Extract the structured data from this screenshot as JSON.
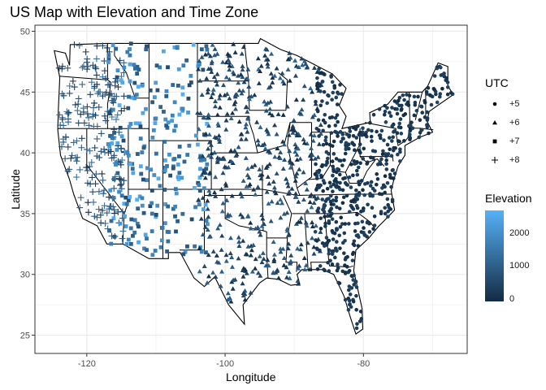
{
  "chart_data": {
    "type": "scatter",
    "title": "US Map with Elevation and Time Zone",
    "xlabel": "Longitude",
    "ylabel": "Latitude",
    "xlim": [
      -127.5,
      -65
    ],
    "ylim": [
      23.5,
      50.5
    ],
    "x_ticks": [
      -120,
      -100,
      -80
    ],
    "y_ticks": [
      25,
      30,
      35,
      40,
      45,
      50
    ],
    "x_tick_labels": [
      "-120",
      "-100",
      "-80"
    ],
    "y_tick_labels": [
      "25",
      "30",
      "35",
      "40",
      "45",
      "50"
    ],
    "grid": true,
    "legend_placement": "right",
    "shape_legend": {
      "title": "UTC",
      "entries": [
        {
          "label": "+5",
          "shape": "circle"
        },
        {
          "label": "+6",
          "shape": "triangle"
        },
        {
          "label": "+7",
          "shape": "square"
        },
        {
          "label": "+8",
          "shape": "plus"
        }
      ]
    },
    "color_legend": {
      "title": "Elevation",
      "labels": [
        "2000",
        "1000",
        "0"
      ],
      "values": [
        2000,
        1000,
        0
      ],
      "range": [
        0,
        2700
      ],
      "low_color": "#132B43",
      "high_color": "#56B1F7"
    },
    "series": [
      {
        "name": "+8",
        "shape": "plus",
        "lon_range": [
          -124.5,
          -114.5
        ],
        "lat_range": [
          32.7,
          49.2
        ],
        "elev_range": [
          0,
          1500
        ]
      },
      {
        "name": "+7",
        "shape": "square",
        "lon_range": [
          -117,
          -102.5
        ],
        "lat_range": [
          31.5,
          49
        ],
        "elev_range": [
          600,
          2700
        ]
      },
      {
        "name": "+6",
        "shape": "triangle",
        "lon_range": [
          -104,
          -86
        ],
        "lat_range": [
          26,
          49
        ],
        "elev_range": [
          0,
          1200
        ]
      },
      {
        "name": "+5",
        "shape": "circle",
        "lon_range": [
          -87,
          -67
        ],
        "lat_range": [
          24.6,
          47.5
        ],
        "elev_range": [
          0,
          500
        ]
      }
    ]
  }
}
